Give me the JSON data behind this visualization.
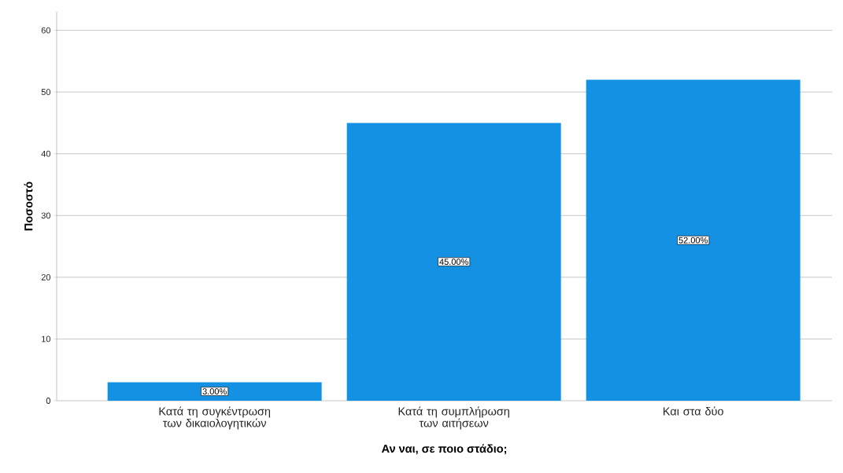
{
  "chart_data": {
    "type": "bar",
    "xlabel": "Αν ναι, σε ποιο στάδιο;",
    "ylabel": "Ποσοστό",
    "categories": [
      "Κατά τη συγκέντρωση των δικαιολογητικών",
      "Κατά τη συμπλήρωση των αιτήσεων",
      "Και στα δύο"
    ],
    "values": [
      3,
      45,
      52
    ],
    "value_labels": [
      "3.00%",
      "45.00%",
      "52.00%"
    ],
    "color": "#1591e4",
    "ylim": [
      0,
      63
    ],
    "yticks": [
      0,
      10,
      20,
      30,
      40,
      50,
      60
    ],
    "grid": "y"
  }
}
